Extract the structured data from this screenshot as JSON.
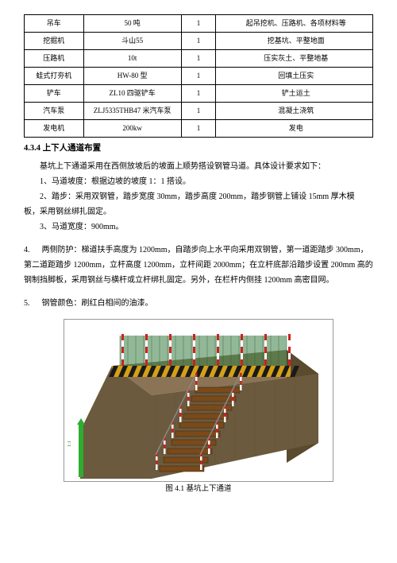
{
  "table": {
    "rows": [
      {
        "c1": "吊车",
        "c2": "50 吨",
        "c3": "1",
        "c4": "起吊挖机、压路机、各项材料等"
      },
      {
        "c1": "挖掘机",
        "c2": "斗山55",
        "c3": "1",
        "c4": "挖基坑、平整地面"
      },
      {
        "c1": "压路机",
        "c2": "10t",
        "c3": "1",
        "c4": "压实灰土、平整地基"
      },
      {
        "c1": "蛙式打夯机",
        "c2": "HW-80 型",
        "c3": "1",
        "c4": "回填土压实"
      },
      {
        "c1": "铲车",
        "c2": "ZL10 四驱铲车",
        "c3": "1",
        "c4": "铲土运土"
      },
      {
        "c1": "汽车泵",
        "c2": "ZLJ5335THB47 米汽车泵",
        "c3": "1",
        "c4": "混凝土浇筑"
      },
      {
        "c1": "发电机",
        "c2": "200kw",
        "c3": "1",
        "c4": "发电"
      }
    ]
  },
  "heading": "4.3.4 上下人通道布置",
  "intro": "基坑上下通道采用在西侧放坡后的坡面上顺势搭设钢管马道。具体设计要求如下：",
  "items": [
    "1、马道坡度：根据边坡的坡度 1：1 搭设。",
    "2、踏步：采用双钢管，踏步宽度 30mm，踏步高度 200mm，踏步钢管上铺设 15mm 厚木模",
    "3、马道宽度：900mm。"
  ],
  "item2_cont": "板，采用钢丝绑扎固定。",
  "para4_label": "4.",
  "para4": "两侧防护：梯道扶手高度为 1200mm，自踏步向上水平向采用双钢管，第一道距踏步 300mm，第二道距踏步 1200mm，立杆高度 1200mm，立杆间距 2000mm；在立杆底部沿踏步设置 200mm 高的钢制挡脚板，采用钢丝与横杆或立杆绑扎固定。另外，在栏杆内侧挂 1200mm 高密目网。",
  "para5_label": "5.",
  "para5": "钢管颜色：刷红白相间的油漆。",
  "figure": {
    "caption": "图 4.1 基坑上下通道",
    "colors": {
      "sky": "#e8f4f8",
      "fence_green": "#3a7d44",
      "barrier_yellow": "#d4a017",
      "barrier_black": "#1a1a1a",
      "soil_top": "#8b7355",
      "soil_face": "#6b5a3e",
      "soil_side": "#5a4a2e",
      "post_red": "#cc2222",
      "post_white": "#ffffff",
      "step": "#7a4a1a"
    }
  }
}
